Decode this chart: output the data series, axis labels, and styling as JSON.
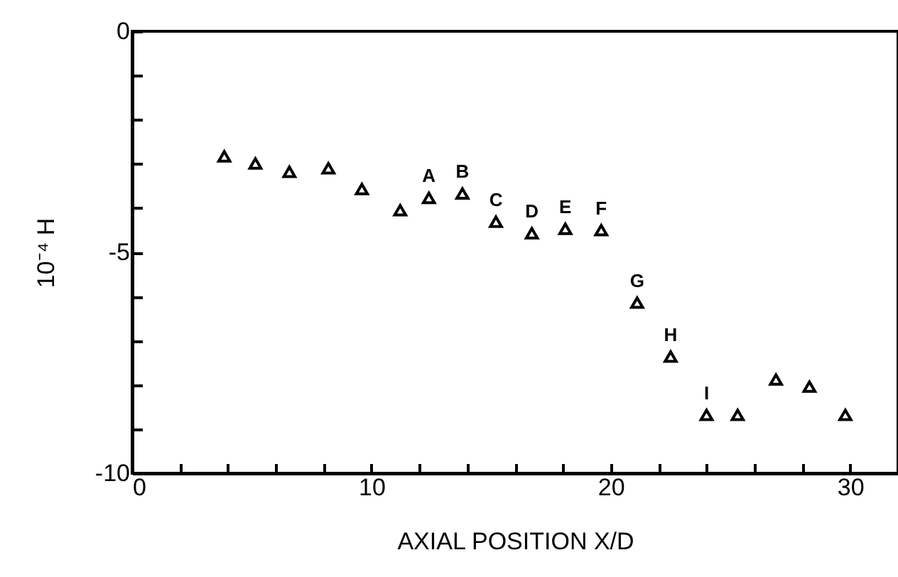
{
  "chart_data": {
    "type": "scatter",
    "xlabel": "AXIAL POSITION X/D",
    "ylabel": "10⁻⁴ H",
    "x": [
      3.85,
      5.15,
      6.57,
      8.2,
      9.6,
      11.2,
      12.4,
      13.8,
      15.2,
      16.7,
      18.1,
      19.6,
      21.1,
      22.5,
      24.0,
      25.3,
      26.9,
      28.3,
      29.8
    ],
    "series": [
      {
        "color": "#000000",
        "values": [
          -2.83,
          -2.99,
          -3.18,
          -3.1,
          -3.57,
          -4.05,
          -3.77,
          -3.67,
          -4.31,
          -4.57,
          -4.47,
          -4.5,
          -6.14,
          -7.36,
          -8.68,
          -8.68,
          -7.88,
          -8.04,
          -8.68
        ]
      }
    ],
    "marker": "triangle",
    "grid": false,
    "xlim": [
      0,
      32
    ],
    "xticks": [
      0,
      {
        "value": 2,
        "label": null
      },
      {
        "value": 4,
        "label": null
      },
      {
        "value": 6,
        "label": null
      },
      {
        "value": 8,
        "label": null
      },
      10,
      {
        "value": 12,
        "label": null
      },
      {
        "value": 14,
        "label": null
      },
      {
        "value": 16,
        "label": null
      },
      {
        "value": 18,
        "label": null
      },
      20,
      {
        "value": 22,
        "label": null
      },
      {
        "value": 24,
        "label": null
      },
      {
        "value": 26,
        "label": null
      },
      {
        "value": 28,
        "label": null
      },
      30
    ],
    "ylim": [
      -10,
      0
    ],
    "yticks": [
      -10,
      {
        "value": -9,
        "label": null
      },
      {
        "value": -8,
        "label": null
      },
      {
        "value": -7,
        "label": null
      },
      {
        "value": -6,
        "label": null
      },
      -5,
      {
        "value": -4,
        "label": null
      },
      {
        "value": -3,
        "label": null
      },
      {
        "value": -2,
        "label": null
      },
      {
        "value": -1,
        "label": null
      },
      0
    ],
    "annotations": [
      {
        "text": "A",
        "x": 12.4,
        "y": -3.77
      },
      {
        "text": "B",
        "x": 13.8,
        "y": -3.67
      },
      {
        "text": "C",
        "x": 15.2,
        "y": -4.31
      },
      {
        "text": "D",
        "x": 16.7,
        "y": -4.57
      },
      {
        "text": "E",
        "x": 18.1,
        "y": -4.47
      },
      {
        "text": "F",
        "x": 19.6,
        "y": -4.5
      },
      {
        "text": "G",
        "x": 21.1,
        "y": -6.14
      },
      {
        "text": "H",
        "x": 22.5,
        "y": -7.36
      },
      {
        "text": "I",
        "x": 24.0,
        "y": -8.68
      }
    ]
  }
}
